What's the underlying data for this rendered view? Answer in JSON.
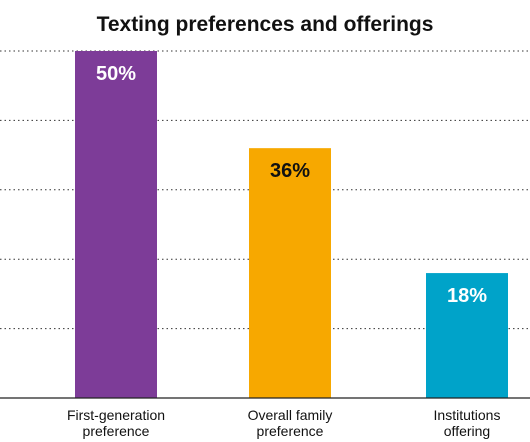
{
  "chart_data": {
    "type": "bar",
    "title": "Texting preferences and offerings",
    "categories": [
      [
        "First-generation",
        "preference"
      ],
      [
        "Overall family",
        "preference"
      ],
      [
        "Institutions",
        "offering"
      ]
    ],
    "values": [
      50,
      36,
      18
    ],
    "data_labels": [
      "50%",
      "36%",
      "18%"
    ],
    "colors": [
      "#7d3c98",
      "#f7a800",
      "#00a3c9"
    ],
    "label_colors": [
      "#ffffff",
      "#111111",
      "#ffffff"
    ],
    "ylim": [
      0,
      50
    ],
    "ytick_step": 10,
    "grid": true,
    "xlabel": "",
    "ylabel": ""
  }
}
